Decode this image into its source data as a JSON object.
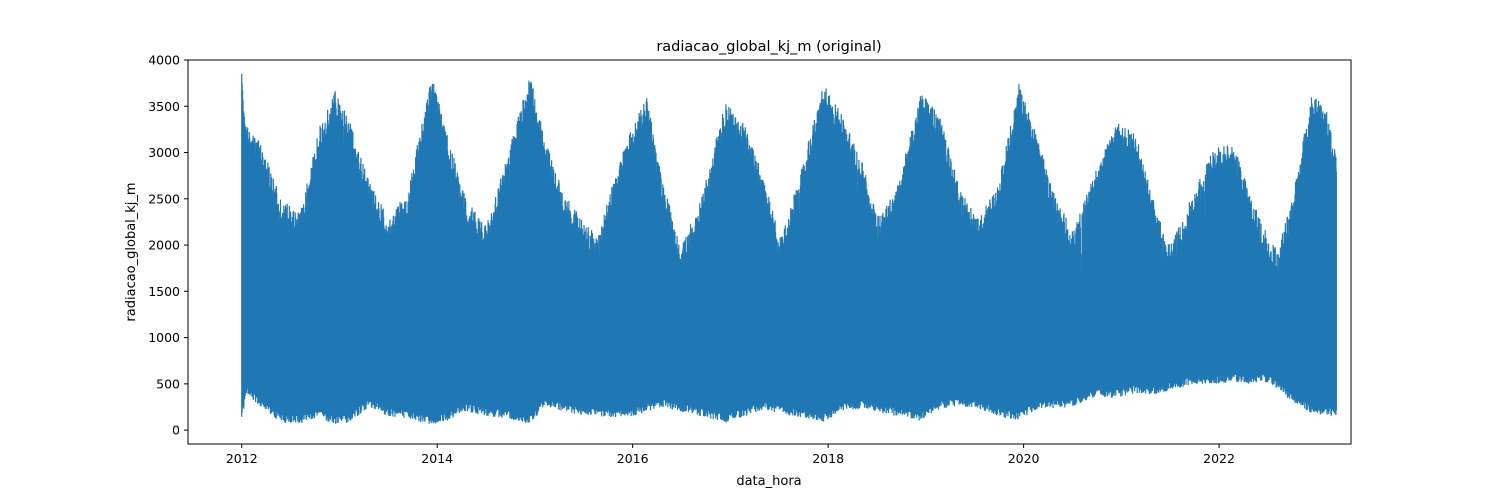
{
  "chart_data": {
    "type": "line",
    "title": "radiacao_global_kj_m (original)",
    "xlabel": "data_hora",
    "ylabel": "radiacao_global_kj_m",
    "xlim": [
      2011.45,
      2023.35
    ],
    "ylim": [
      -150,
      4000
    ],
    "x_ticks": [
      2012,
      2014,
      2016,
      2018,
      2020,
      2022
    ],
    "x_tick_labels": [
      "2012",
      "2014",
      "2016",
      "2018",
      "2020",
      "2022"
    ],
    "y_ticks": [
      0,
      500,
      1000,
      1500,
      2000,
      2500,
      3000,
      3500,
      4000
    ],
    "y_tick_labels": [
      "0",
      "500",
      "1000",
      "1500",
      "2000",
      "2500",
      "3000",
      "3500",
      "4000"
    ],
    "grid": false,
    "series": [
      {
        "color": "#1f77b4",
        "upper_envelope": {
          "x": [
            2012.0,
            2012.05,
            2012.2,
            2012.4,
            2012.6,
            2012.8,
            2012.95,
            2013.1,
            2013.3,
            2013.5,
            2013.7,
            2013.95,
            2014.1,
            2014.3,
            2014.5,
            2014.7,
            2014.95,
            2015.1,
            2015.3,
            2015.5,
            2015.65,
            2015.8,
            2016.0,
            2016.15,
            2016.3,
            2016.5,
            2016.7,
            2016.95,
            2017.15,
            2017.35,
            2017.5,
            2017.7,
            2017.95,
            2018.15,
            2018.35,
            2018.5,
            2018.7,
            2018.95,
            2019.15,
            2019.35,
            2019.55,
            2019.75,
            2019.95,
            2020.1,
            2020.3,
            2020.5,
            2020.7,
            2020.95,
            2021.15,
            2021.35,
            2021.5,
            2021.75,
            2021.95,
            2022.15,
            2022.3,
            2022.45,
            2022.6,
            2022.75,
            2022.95,
            2023.1,
            2023.2
          ],
          "y": [
            3850,
            3300,
            3100,
            2500,
            2350,
            3300,
            3680,
            3350,
            2700,
            2300,
            2600,
            3850,
            3200,
            2500,
            2200,
            2900,
            3850,
            3150,
            2550,
            2250,
            2100,
            2700,
            3300,
            3600,
            2700,
            2000,
            2500,
            3550,
            3300,
            2700,
            2100,
            2700,
            3750,
            3400,
            2900,
            2300,
            2600,
            3650,
            3400,
            2600,
            2300,
            2700,
            3750,
            3300,
            2600,
            2150,
            2700,
            3350,
            3200,
            2400,
            2000,
            2600,
            3050,
            3100,
            2600,
            2200,
            1950,
            2500,
            3650,
            3450,
            2950
          ]
        },
        "lower_envelope": {
          "x": [
            2012.0,
            2012.05,
            2012.2,
            2012.4,
            2012.6,
            2012.8,
            2012.95,
            2013.1,
            2013.3,
            2013.5,
            2013.7,
            2013.95,
            2014.1,
            2014.3,
            2014.5,
            2014.7,
            2014.95,
            2015.1,
            2015.3,
            2015.5,
            2015.65,
            2015.8,
            2016.0,
            2016.15,
            2016.3,
            2016.5,
            2016.7,
            2016.95,
            2017.15,
            2017.35,
            2017.5,
            2017.7,
            2017.95,
            2018.15,
            2018.35,
            2018.5,
            2018.7,
            2018.95,
            2019.15,
            2019.35,
            2019.55,
            2019.75,
            2019.95,
            2020.1,
            2020.3,
            2020.5,
            2020.7,
            2020.95,
            2021.15,
            2021.35,
            2021.5,
            2021.75,
            2021.95,
            2022.15,
            2022.3,
            2022.45,
            2022.6,
            2022.75,
            2022.95,
            2023.1,
            2023.2
          ],
          "y": [
            110,
            380,
            250,
            80,
            70,
            130,
            60,
            80,
            250,
            150,
            120,
            50,
            100,
            200,
            150,
            130,
            60,
            250,
            200,
            160,
            150,
            140,
            150,
            200,
            250,
            200,
            150,
            80,
            150,
            230,
            180,
            140,
            90,
            200,
            230,
            200,
            150,
            100,
            230,
            250,
            220,
            150,
            100,
            200,
            230,
            250,
            350,
            350,
            400,
            380,
            430,
            500,
            500,
            520,
            500,
            530,
            450,
            300,
            180,
            160,
            150
          ]
        },
        "baseline": 700
      }
    ]
  }
}
